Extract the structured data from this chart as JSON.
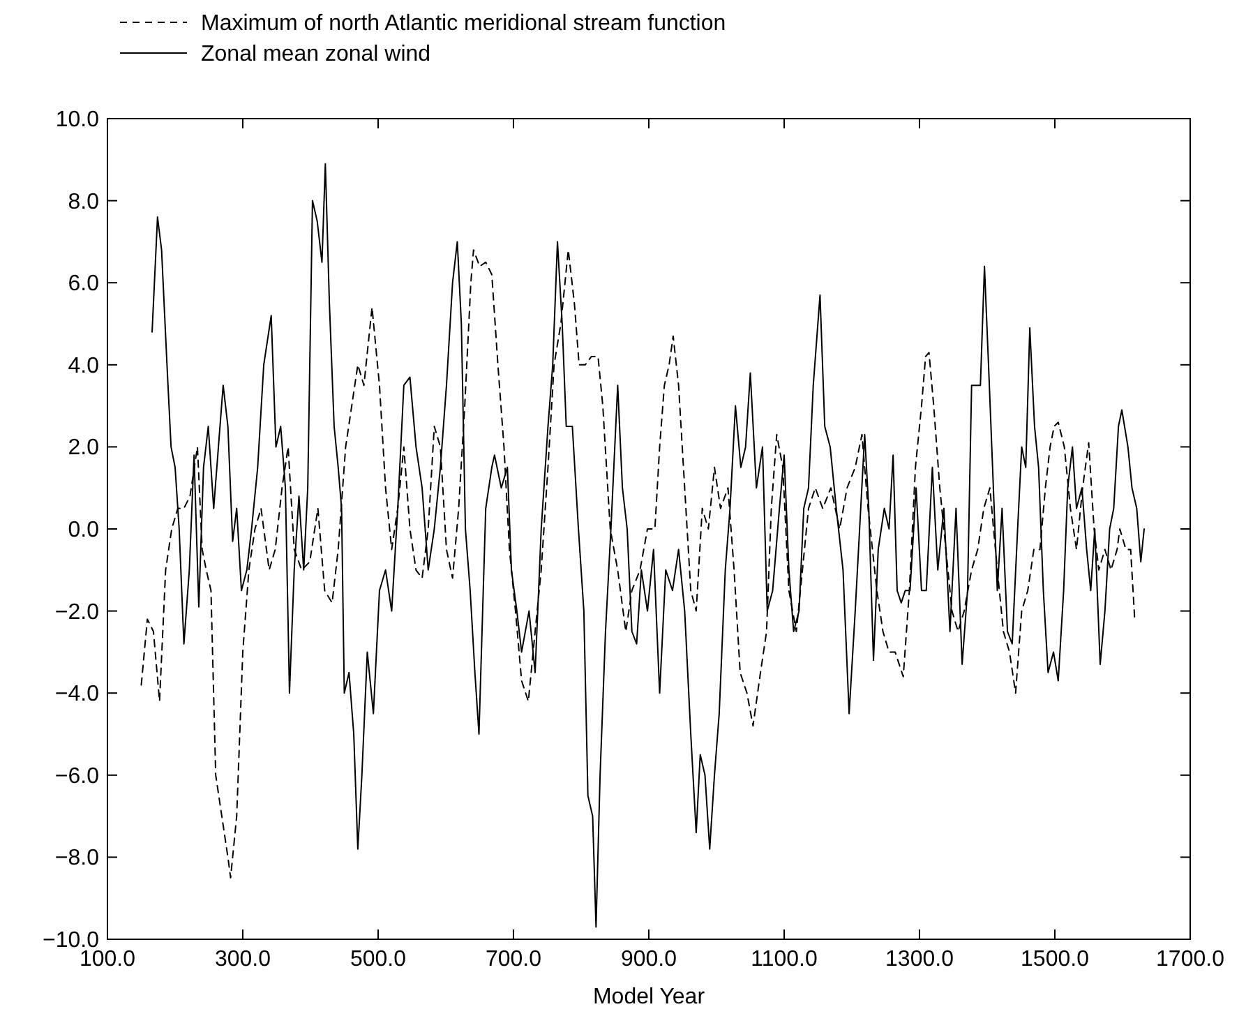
{
  "chart_data": {
    "type": "line",
    "xlabel": "Model Year",
    "xlim": [
      100,
      1700
    ],
    "xticks": [
      {
        "value": 100,
        "label": "100.0"
      },
      {
        "value": 300,
        "label": "300.0"
      },
      {
        "value": 500,
        "label": "500.0"
      },
      {
        "value": 700,
        "label": "700.0"
      },
      {
        "value": 900,
        "label": "900.0"
      },
      {
        "value": 1100,
        "label": "1100.0"
      },
      {
        "value": 1300,
        "label": "1300.0"
      },
      {
        "value": 1500,
        "label": "1500.0"
      },
      {
        "value": 1700,
        "label": "1700.0"
      }
    ],
    "ylim": [
      -10,
      10
    ],
    "yticks": [
      {
        "value": -10,
        "label": "−10.0"
      },
      {
        "value": -8,
        "label": "−8.0"
      },
      {
        "value": -6,
        "label": "−6.0"
      },
      {
        "value": -4,
        "label": "−4.0"
      },
      {
        "value": -2,
        "label": "−2.0"
      },
      {
        "value": 0,
        "label": "0.0"
      },
      {
        "value": 2,
        "label": "2.0"
      },
      {
        "value": 4,
        "label": "4.0"
      },
      {
        "value": 6,
        "label": "6.0"
      },
      {
        "value": 8,
        "label": "8.0"
      },
      {
        "value": 10,
        "label": "10.0"
      }
    ],
    "grid": false,
    "legend": "top left",
    "marker": "none",
    "series": [
      {
        "name": "Maximum of north Atlantic meridional stream function",
        "color": "#000000",
        "line_style": "dashed",
        "x": [
          150,
          159,
          168,
          177,
          186,
          195,
          204,
          213,
          222,
          233,
          240,
          246,
          253,
          260,
          269,
          278,
          282,
          291,
          300,
          309,
          318,
          327,
          339,
          348,
          358,
          367,
          376,
          387,
          399,
          411,
          421,
          432,
          441,
          452,
          461,
          470,
          479,
          491,
          502,
          511,
          520,
          529,
          538,
          547,
          556,
          565,
          574,
          583,
          592,
          601,
          610,
          619,
          628,
          637,
          641,
          650,
          659,
          668,
          677,
          686,
          694,
          703,
          712,
          722,
          732,
          741,
          751,
          760,
          770,
          781,
          790,
          797,
          806,
          815,
          825,
          832,
          843,
          854,
          866,
          875,
          887,
          898,
          909,
          916,
          923,
          930,
          936,
          944,
          953,
          962,
          970,
          979,
          988,
          997,
          1006,
          1017,
          1026,
          1035,
          1045,
          1054,
          1065,
          1074,
          1081,
          1089,
          1098,
          1107,
          1118,
          1127,
          1136,
          1146,
          1157,
          1169,
          1182,
          1193,
          1205,
          1215,
          1224,
          1237,
          1246,
          1255,
          1264,
          1276,
          1285,
          1294,
          1303,
          1309,
          1314,
          1321,
          1330,
          1339,
          1348,
          1357,
          1366,
          1377,
          1386,
          1395,
          1404,
          1415,
          1424,
          1433,
          1442,
          1451,
          1460,
          1469,
          1478,
          1486,
          1493,
          1499,
          1505,
          1514,
          1523,
          1532,
          1541,
          1550,
          1558,
          1565,
          1574,
          1583,
          1592,
          1596,
          1605,
          1612,
          1618
        ],
        "values": [
          -3.8,
          -2.2,
          -2.5,
          -4.2,
          -1.0,
          0.0,
          0.5,
          0.5,
          0.8,
          2.0,
          -0.5,
          -1.0,
          -1.5,
          -6.0,
          -7.0,
          -8.0,
          -8.5,
          -7.0,
          -3.0,
          -1.0,
          0.0,
          0.5,
          -1.0,
          -0.5,
          1.0,
          2.0,
          -0.5,
          -1.0,
          -0.8,
          0.5,
          -1.5,
          -1.8,
          -0.5,
          2.0,
          3.0,
          4.0,
          3.5,
          5.4,
          3.5,
          1.0,
          -0.5,
          0.5,
          2.0,
          0.0,
          -1.0,
          -1.2,
          0.0,
          2.5,
          2.0,
          -0.5,
          -1.2,
          0.5,
          3.0,
          6.0,
          6.8,
          6.4,
          6.5,
          6.2,
          4.0,
          2.0,
          -0.5,
          -2.0,
          -3.7,
          -4.2,
          -2.5,
          -1.0,
          1.5,
          4.0,
          5.0,
          6.8,
          5.5,
          4.0,
          4.0,
          4.2,
          4.2,
          3.0,
          0.0,
          -1.0,
          -2.5,
          -1.5,
          -1.0,
          0.0,
          0.0,
          2.0,
          3.5,
          4.0,
          4.7,
          3.5,
          1.0,
          -1.5,
          -2.0,
          0.5,
          0.0,
          1.5,
          0.5,
          1.0,
          -1.0,
          -3.5,
          -4.0,
          -4.8,
          -3.5,
          -2.5,
          0.5,
          2.3,
          1.5,
          -1.5,
          -2.5,
          -1.0,
          0.5,
          1.0,
          0.5,
          1.0,
          0.0,
          1.0,
          1.5,
          2.3,
          0.5,
          -1.5,
          -2.5,
          -3.0,
          -3.0,
          -3.6,
          -1.5,
          1.5,
          3.0,
          4.2,
          4.3,
          3.0,
          1.0,
          -0.5,
          -2.0,
          -2.5,
          -2.0,
          -1.0,
          -0.5,
          0.5,
          1.0,
          -1.0,
          -2.5,
          -3.0,
          -4.0,
          -2.0,
          -1.5,
          -0.5,
          -0.5,
          1.0,
          2.0,
          2.5,
          2.6,
          2.0,
          0.5,
          -0.5,
          1.0,
          2.1,
          0.0,
          -1.0,
          -0.5,
          -1.0,
          -0.5,
          0.0,
          -0.5,
          -0.5,
          -2.2
        ]
      },
      {
        "name": "Zonal mean zonal wind",
        "color": "#000000",
        "line_style": "solid",
        "x": [
          166,
          174,
          180,
          188,
          194,
          200,
          206,
          213,
          221,
          228,
          235,
          242,
          249,
          257,
          264,
          271,
          278,
          285,
          291,
          298,
          306,
          313,
          322,
          331,
          342,
          349,
          356,
          363,
          369,
          376,
          383,
          390,
          396,
          403,
          410,
          417,
          422,
          428,
          435,
          441,
          446,
          450,
          457,
          464,
          470,
          476,
          484,
          493,
          502,
          511,
          520,
          529,
          538,
          547,
          556,
          565,
          574,
          583,
          592,
          601,
          610,
          617,
          623,
          629,
          636,
          643,
          649,
          659,
          668,
          672,
          682,
          691,
          697,
          705,
          712,
          723,
          732,
          741,
          751,
          758,
          765,
          772,
          778,
          787,
          796,
          804,
          810,
          817,
          822,
          828,
          836,
          844,
          854,
          861,
          868,
          875,
          882,
          889,
          898,
          907,
          916,
          925,
          935,
          944,
          953,
          962,
          970,
          976,
          983,
          990,
          997,
          1004,
          1013,
          1020,
          1028,
          1036,
          1043,
          1050,
          1059,
          1068,
          1075,
          1083,
          1093,
          1100,
          1107,
          1114,
          1122,
          1129,
          1136,
          1143,
          1153,
          1160,
          1168,
          1177,
          1187,
          1196,
          1205,
          1219,
          1225,
          1232,
          1239,
          1248,
          1255,
          1261,
          1267,
          1273,
          1279,
          1286,
          1295,
          1303,
          1310,
          1319,
          1327,
          1336,
          1345,
          1354,
          1363,
          1371,
          1377,
          1384,
          1390,
          1396,
          1402,
          1408,
          1415,
          1422,
          1430,
          1437,
          1445,
          1451,
          1457,
          1463,
          1470,
          1476,
          1483,
          1490,
          1498,
          1505,
          1513,
          1519,
          1526,
          1532,
          1540,
          1547,
          1553,
          1559,
          1567,
          1574,
          1581,
          1587,
          1594,
          1599,
          1608,
          1614,
          1621,
          1627,
          1632
        ],
        "values": [
          4.8,
          7.6,
          6.8,
          4.0,
          2.0,
          1.5,
          0.0,
          -2.8,
          -1.0,
          1.8,
          -1.9,
          1.5,
          2.5,
          0.5,
          2.0,
          3.5,
          2.5,
          -0.3,
          0.5,
          -1.5,
          -1.0,
          0.0,
          1.5,
          4.0,
          5.2,
          2.0,
          2.5,
          1.0,
          -4.0,
          -1.0,
          0.8,
          -1.0,
          1.0,
          8.0,
          7.5,
          6.5,
          8.9,
          5.5,
          2.5,
          1.5,
          0.5,
          -4.0,
          -3.5,
          -5.0,
          -7.8,
          -6.0,
          -3.0,
          -4.5,
          -1.5,
          -1.0,
          -2.0,
          0.5,
          3.5,
          3.7,
          2.0,
          1.0,
          -1.0,
          0.0,
          1.5,
          3.5,
          6.0,
          7.0,
          5.0,
          0.0,
          -1.5,
          -3.5,
          -5.0,
          0.5,
          1.5,
          1.8,
          1.0,
          1.5,
          -1.0,
          -2.0,
          -3.0,
          -2.0,
          -3.5,
          0.0,
          2.5,
          4.0,
          7.0,
          5.0,
          2.5,
          2.5,
          0.0,
          -2.0,
          -6.5,
          -7.0,
          -9.7,
          -6.0,
          -2.5,
          0.0,
          3.5,
          1.0,
          0.0,
          -2.5,
          -2.8,
          -1.0,
          -2.0,
          -0.5,
          -4.0,
          -1.0,
          -1.5,
          -0.5,
          -2.0,
          -5.0,
          -7.4,
          -5.5,
          -6.0,
          -7.8,
          -6.0,
          -4.5,
          -1.0,
          0.5,
          3.0,
          1.5,
          2.0,
          3.8,
          1.0,
          2.0,
          -2.0,
          -1.5,
          0.5,
          1.8,
          -1.0,
          -2.5,
          -2.0,
          0.5,
          1.0,
          3.5,
          5.7,
          2.5,
          2.0,
          0.5,
          -1.0,
          -4.5,
          -2.0,
          2.3,
          0.5,
          -3.2,
          -0.5,
          0.5,
          0.0,
          1.8,
          -1.5,
          -1.8,
          -1.5,
          -1.5,
          1.0,
          -1.5,
          -1.5,
          1.5,
          -1.0,
          0.5,
          -2.5,
          0.5,
          -3.3,
          -1.5,
          3.5,
          3.5,
          3.5,
          6.4,
          4.0,
          1.5,
          -1.5,
          0.5,
          -2.5,
          -2.8,
          0.0,
          2.0,
          1.5,
          4.9,
          2.5,
          1.5,
          -1.5,
          -3.5,
          -3.0,
          -3.7,
          -1.5,
          1.0,
          2.0,
          0.5,
          1.0,
          -0.5,
          -1.5,
          0.0,
          -3.3,
          -2.0,
          0.0,
          0.5,
          2.5,
          2.9,
          2.0,
          1.0,
          0.5,
          -0.8,
          0.0
        ]
      }
    ]
  }
}
